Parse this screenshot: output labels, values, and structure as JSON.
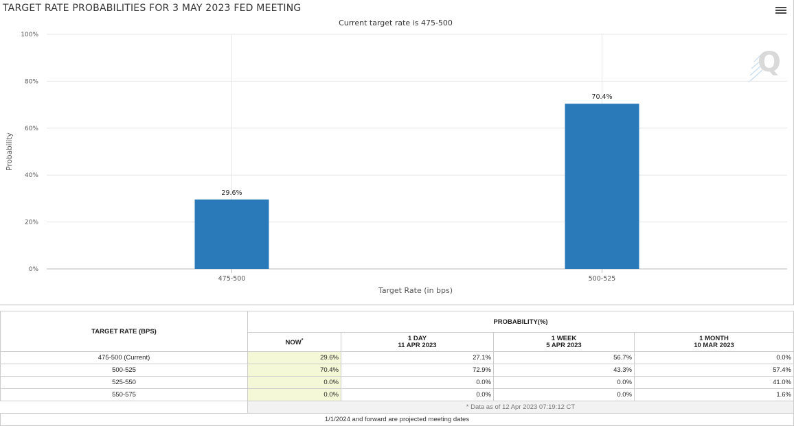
{
  "chart": {
    "title": "TARGET RATE PROBABILITIES FOR 3 MAY 2023 FED MEETING",
    "subtitle": "Current target rate is 475-500"
  },
  "chart_data": {
    "type": "bar",
    "title": "TARGET RATE PROBABILITIES FOR 3 MAY 2023 FED MEETING",
    "subtitle": "Current target rate is 475-500",
    "categories": [
      "475-500",
      "500-525"
    ],
    "values": [
      29.6,
      70.4
    ],
    "data_labels": [
      "29.6%",
      "70.4%"
    ],
    "xlabel": "Target Rate (in bps)",
    "ylabel": "Probability",
    "ylim": [
      0,
      100
    ],
    "yticks": [
      0,
      20,
      40,
      60,
      80,
      100
    ],
    "ytick_labels": [
      "0%",
      "20%",
      "40%",
      "60%",
      "80%",
      "100%"
    ],
    "bar_color": "#2a7ab9",
    "grid": true
  },
  "table": {
    "rate_header": "TARGET RATE (BPS)",
    "prob_header": "PROBABILITY(%)",
    "columns": [
      {
        "line1": "NOW",
        "line2": "",
        "marker": "*"
      },
      {
        "line1": "1 DAY",
        "line2": "11 APR 2023"
      },
      {
        "line1": "1 WEEK",
        "line2": "5 APR 2023"
      },
      {
        "line1": "1 MONTH",
        "line2": "10 MAR 2023"
      }
    ],
    "rows": [
      {
        "rate": "475-500 (Current)",
        "values": [
          "29.6%",
          "27.1%",
          "56.7%",
          "0.0%"
        ]
      },
      {
        "rate": "500-525",
        "values": [
          "70.4%",
          "72.9%",
          "43.3%",
          "57.4%"
        ]
      },
      {
        "rate": "525-550",
        "values": [
          "0.0%",
          "0.0%",
          "0.0%",
          "41.0%"
        ]
      },
      {
        "rate": "550-575",
        "values": [
          "0.0%",
          "0.0%",
          "0.0%",
          "1.6%"
        ]
      }
    ],
    "footnote": "* Data as of 12 Apr 2023 07:19:12 CT",
    "note": "1/1/2024 and forward are projected meeting dates"
  },
  "icons": {
    "menu": "hamburger-menu-icon",
    "logo": "q-logo-icon"
  }
}
